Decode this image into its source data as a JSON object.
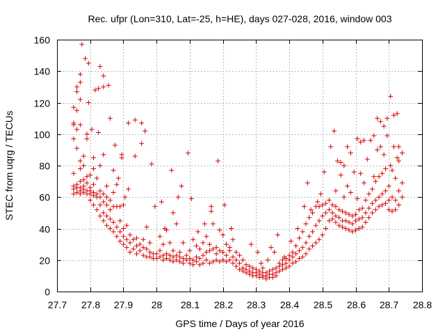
{
  "chart_data": {
    "type": "scatter",
    "title": "Rec. ufpr (Lon=310, Lat=-25, h=HE), days 027-028, 2016, window 003",
    "xlabel": "GPS time / Days of year 2016",
    "ylabel": "STEC from uqrg / TECUs",
    "xlim": [
      27.7,
      28.8
    ],
    "ylim": [
      0,
      160
    ],
    "x_ticks": [
      "27.7",
      "27.8",
      "27.9",
      "28",
      "28.1",
      "28.2",
      "28.3",
      "28.4",
      "28.5",
      "28.6",
      "28.7",
      "28.8"
    ],
    "y_ticks": [
      "0",
      "20",
      "40",
      "60",
      "80",
      "100",
      "120",
      "140",
      "160"
    ],
    "grid": true,
    "marker": "+",
    "color": "#d40000",
    "points": [
      [
        27.75,
        62
      ],
      [
        27.75,
        65
      ],
      [
        27.75,
        67
      ],
      [
        27.75,
        75
      ],
      [
        27.75,
        97
      ],
      [
        27.75,
        106
      ],
      [
        27.75,
        107
      ],
      [
        27.75,
        117
      ],
      [
        27.76,
        63
      ],
      [
        27.76,
        66
      ],
      [
        27.76,
        68
      ],
      [
        27.76,
        91
      ],
      [
        27.76,
        103
      ],
      [
        27.76,
        115
      ],
      [
        27.76,
        127
      ],
      [
        27.76,
        130
      ],
      [
        27.77,
        62
      ],
      [
        27.77,
        64
      ],
      [
        27.77,
        66
      ],
      [
        27.77,
        70
      ],
      [
        27.77,
        78
      ],
      [
        27.77,
        83
      ],
      [
        27.77,
        106
      ],
      [
        27.77,
        122
      ],
      [
        27.77,
        133
      ],
      [
        27.77,
        138
      ],
      [
        27.775,
        157
      ],
      [
        27.78,
        63
      ],
      [
        27.78,
        65
      ],
      [
        27.78,
        67
      ],
      [
        27.78,
        71
      ],
      [
        27.78,
        80
      ],
      [
        27.78,
        86
      ],
      [
        27.785,
        148
      ],
      [
        27.79,
        62
      ],
      [
        27.79,
        64
      ],
      [
        27.79,
        69
      ],
      [
        27.79,
        73
      ],
      [
        27.79,
        97
      ],
      [
        27.79,
        100
      ],
      [
        27.795,
        120
      ],
      [
        27.795,
        145
      ],
      [
        27.8,
        58
      ],
      [
        27.8,
        62
      ],
      [
        27.8,
        64
      ],
      [
        27.8,
        66
      ],
      [
        27.8,
        74
      ],
      [
        27.805,
        103
      ],
      [
        27.81,
        55
      ],
      [
        27.81,
        61
      ],
      [
        27.81,
        63
      ],
      [
        27.81,
        68
      ],
      [
        27.81,
        78
      ],
      [
        27.81,
        85
      ],
      [
        27.815,
        128
      ],
      [
        27.82,
        52
      ],
      [
        27.82,
        60
      ],
      [
        27.82,
        62
      ],
      [
        27.82,
        72
      ],
      [
        27.825,
        101
      ],
      [
        27.825,
        129
      ],
      [
        27.83,
        48
      ],
      [
        27.83,
        55
      ],
      [
        27.83,
        60
      ],
      [
        27.83,
        64
      ],
      [
        27.83,
        80
      ],
      [
        27.83,
        143
      ],
      [
        27.84,
        45
      ],
      [
        27.84,
        50
      ],
      [
        27.84,
        57
      ],
      [
        27.84,
        62
      ],
      [
        27.84,
        87
      ],
      [
        27.84,
        130
      ],
      [
        27.84,
        137
      ],
      [
        27.85,
        42
      ],
      [
        27.85,
        48
      ],
      [
        27.85,
        55
      ],
      [
        27.85,
        60
      ],
      [
        27.85,
        67
      ],
      [
        27.855,
        131
      ],
      [
        27.86,
        40
      ],
      [
        27.86,
        46
      ],
      [
        27.86,
        52
      ],
      [
        27.86,
        58
      ],
      [
        27.86,
        110
      ],
      [
        27.87,
        38
      ],
      [
        27.87,
        44
      ],
      [
        27.87,
        54
      ],
      [
        27.87,
        63
      ],
      [
        27.87,
        77
      ],
      [
        27.875,
        93
      ],
      [
        27.88,
        35
      ],
      [
        27.88,
        41
      ],
      [
        27.88,
        54
      ],
      [
        27.88,
        68
      ],
      [
        27.885,
        72
      ],
      [
        27.89,
        32
      ],
      [
        27.89,
        38
      ],
      [
        27.89,
        45
      ],
      [
        27.89,
        54
      ],
      [
        27.895,
        85
      ],
      [
        27.895,
        87
      ],
      [
        27.9,
        30
      ],
      [
        27.9,
        35
      ],
      [
        27.9,
        40
      ],
      [
        27.9,
        55
      ],
      [
        27.905,
        60
      ],
      [
        27.91,
        28
      ],
      [
        27.91,
        33
      ],
      [
        27.91,
        42
      ],
      [
        27.915,
        65
      ],
      [
        27.915,
        107
      ],
      [
        27.92,
        25
      ],
      [
        27.92,
        31
      ],
      [
        27.92,
        36
      ],
      [
        27.93,
        27
      ],
      [
        27.93,
        33
      ],
      [
        27.935,
        86
      ],
      [
        27.935,
        109
      ],
      [
        27.94,
        24
      ],
      [
        27.94,
        29
      ],
      [
        27.94,
        34
      ],
      [
        27.95,
        26
      ],
      [
        27.95,
        30
      ],
      [
        27.955,
        94
      ],
      [
        27.955,
        107
      ],
      [
        27.96,
        23
      ],
      [
        27.96,
        28
      ],
      [
        27.96,
        33
      ],
      [
        27.965,
        102
      ],
      [
        27.97,
        22
      ],
      [
        27.97,
        27
      ],
      [
        27.97,
        41
      ],
      [
        27.98,
        22
      ],
      [
        27.98,
        25
      ],
      [
        27.98,
        31
      ],
      [
        27.985,
        81
      ],
      [
        27.99,
        21
      ],
      [
        27.99,
        24
      ],
      [
        27.995,
        54
      ],
      [
        28.0,
        21
      ],
      [
        28.0,
        24
      ],
      [
        28.01,
        22
      ],
      [
        28.01,
        26
      ],
      [
        28.01,
        35
      ],
      [
        28.015,
        57
      ],
      [
        28.02,
        20
      ],
      [
        28.02,
        23
      ],
      [
        28.02,
        30
      ],
      [
        28.025,
        40
      ],
      [
        28.03,
        21
      ],
      [
        28.03,
        24
      ],
      [
        28.03,
        39
      ],
      [
        28.04,
        20
      ],
      [
        28.04,
        23
      ],
      [
        28.04,
        31
      ],
      [
        28.045,
        77
      ],
      [
        28.05,
        19
      ],
      [
        28.05,
        22
      ],
      [
        28.05,
        26
      ],
      [
        28.05,
        50
      ],
      [
        28.06,
        20
      ],
      [
        28.06,
        23
      ],
      [
        28.06,
        43
      ],
      [
        28.065,
        60
      ],
      [
        28.07,
        19
      ],
      [
        28.07,
        22
      ],
      [
        28.07,
        25
      ],
      [
        28.075,
        67
      ],
      [
        28.08,
        18
      ],
      [
        28.08,
        21
      ],
      [
        28.08,
        31
      ],
      [
        28.09,
        20
      ],
      [
        28.09,
        23
      ],
      [
        28.095,
        88
      ],
      [
        28.1,
        18
      ],
      [
        28.1,
        21
      ],
      [
        28.1,
        26
      ],
      [
        28.105,
        59
      ],
      [
        28.11,
        17
      ],
      [
        28.11,
        20
      ],
      [
        28.11,
        33
      ],
      [
        28.12,
        19
      ],
      [
        28.12,
        22
      ],
      [
        28.12,
        29
      ],
      [
        28.125,
        38
      ],
      [
        28.13,
        17
      ],
      [
        28.13,
        21
      ],
      [
        28.13,
        27
      ],
      [
        28.14,
        18
      ],
      [
        28.14,
        23
      ],
      [
        28.14,
        31
      ],
      [
        28.145,
        43
      ],
      [
        28.15,
        20
      ],
      [
        28.15,
        25
      ],
      [
        28.15,
        35
      ],
      [
        28.16,
        18
      ],
      [
        28.16,
        26
      ],
      [
        28.16,
        30
      ],
      [
        28.165,
        51
      ],
      [
        28.165,
        54
      ],
      [
        28.17,
        19
      ],
      [
        28.17,
        27
      ],
      [
        28.17,
        43
      ],
      [
        28.18,
        20
      ],
      [
        28.18,
        24
      ],
      [
        28.18,
        28
      ],
      [
        28.185,
        83
      ],
      [
        28.19,
        19
      ],
      [
        28.19,
        26
      ],
      [
        28.19,
        39
      ],
      [
        28.2,
        20
      ],
      [
        28.2,
        25
      ],
      [
        28.2,
        36
      ],
      [
        28.205,
        55
      ],
      [
        28.21,
        19
      ],
      [
        28.21,
        23
      ],
      [
        28.21,
        30
      ],
      [
        28.22,
        20
      ],
      [
        28.22,
        26
      ],
      [
        28.22,
        28
      ],
      [
        28.225,
        40
      ],
      [
        28.23,
        18
      ],
      [
        28.23,
        22
      ],
      [
        28.23,
        33
      ],
      [
        28.24,
        16
      ],
      [
        28.24,
        20
      ],
      [
        28.24,
        25
      ],
      [
        28.25,
        14
      ],
      [
        28.25,
        18
      ],
      [
        28.25,
        23
      ],
      [
        28.26,
        13
      ],
      [
        28.26,
        15
      ],
      [
        28.26,
        20
      ],
      [
        28.27,
        12
      ],
      [
        28.27,
        14
      ],
      [
        28.27,
        17
      ],
      [
        28.28,
        11
      ],
      [
        28.28,
        13
      ],
      [
        28.28,
        16
      ],
      [
        28.285,
        30
      ],
      [
        28.29,
        10
      ],
      [
        28.29,
        12
      ],
      [
        28.29,
        15
      ],
      [
        28.3,
        10
      ],
      [
        28.3,
        12
      ],
      [
        28.3,
        14
      ],
      [
        28.305,
        25
      ],
      [
        28.31,
        9
      ],
      [
        28.31,
        11
      ],
      [
        28.31,
        13
      ],
      [
        28.315,
        18
      ],
      [
        28.32,
        9
      ],
      [
        28.32,
        10
      ],
      [
        28.32,
        12
      ],
      [
        28.32,
        15
      ],
      [
        28.33,
        8
      ],
      [
        28.33,
        10
      ],
      [
        28.33,
        12
      ],
      [
        28.335,
        20
      ],
      [
        28.34,
        9
      ],
      [
        28.34,
        11
      ],
      [
        28.34,
        13
      ],
      [
        28.345,
        28
      ],
      [
        28.35,
        9
      ],
      [
        28.35,
        11
      ],
      [
        28.35,
        14
      ],
      [
        28.355,
        25
      ],
      [
        28.36,
        10
      ],
      [
        28.36,
        12
      ],
      [
        28.36,
        15
      ],
      [
        28.365,
        36
      ],
      [
        28.37,
        13
      ],
      [
        28.37,
        16
      ],
      [
        28.37,
        18
      ],
      [
        28.38,
        14
      ],
      [
        28.38,
        17
      ],
      [
        28.38,
        20
      ],
      [
        28.385,
        22
      ],
      [
        28.39,
        15
      ],
      [
        28.39,
        18
      ],
      [
        28.39,
        21
      ],
      [
        28.4,
        16
      ],
      [
        28.4,
        20
      ],
      [
        28.4,
        23
      ],
      [
        28.405,
        32
      ],
      [
        28.41,
        18
      ],
      [
        28.41,
        22
      ],
      [
        28.41,
        25
      ],
      [
        28.42,
        19
      ],
      [
        28.42,
        24
      ],
      [
        28.42,
        29
      ],
      [
        28.425,
        40
      ],
      [
        28.43,
        21
      ],
      [
        28.43,
        26
      ],
      [
        28.43,
        34
      ],
      [
        28.44,
        22
      ],
      [
        28.44,
        28
      ],
      [
        28.44,
        38
      ],
      [
        28.445,
        54
      ],
      [
        28.45,
        24
      ],
      [
        28.45,
        31
      ],
      [
        28.45,
        43
      ],
      [
        28.455,
        69
      ],
      [
        28.46,
        27
      ],
      [
        28.46,
        35
      ],
      [
        28.46,
        47
      ],
      [
        28.465,
        52
      ],
      [
        28.47,
        29
      ],
      [
        28.47,
        38
      ],
      [
        28.47,
        50
      ],
      [
        28.48,
        31
      ],
      [
        28.48,
        42
      ],
      [
        28.48,
        54
      ],
      [
        28.485,
        57
      ],
      [
        28.49,
        33
      ],
      [
        28.49,
        45
      ],
      [
        28.49,
        54
      ],
      [
        28.495,
        62
      ],
      [
        28.5,
        36
      ],
      [
        28.5,
        48
      ],
      [
        28.5,
        55
      ],
      [
        28.505,
        76
      ],
      [
        28.51,
        40
      ],
      [
        28.51,
        50
      ],
      [
        28.51,
        56
      ],
      [
        28.52,
        45
      ],
      [
        28.52,
        52
      ],
      [
        28.52,
        58
      ],
      [
        28.525,
        92
      ],
      [
        28.53,
        46
      ],
      [
        28.53,
        50
      ],
      [
        28.53,
        55
      ],
      [
        28.535,
        102
      ],
      [
        28.54,
        44
      ],
      [
        28.54,
        48
      ],
      [
        28.54,
        54
      ],
      [
        28.54,
        64
      ],
      [
        28.545,
        83
      ],
      [
        28.55,
        42
      ],
      [
        28.55,
        47
      ],
      [
        28.55,
        52
      ],
      [
        28.555,
        74
      ],
      [
        28.555,
        82
      ],
      [
        28.56,
        41
      ],
      [
        28.56,
        45
      ],
      [
        28.56,
        51
      ],
      [
        28.565,
        60
      ],
      [
        28.565,
        80
      ],
      [
        28.57,
        40
      ],
      [
        28.57,
        45
      ],
      [
        28.57,
        50
      ],
      [
        28.575,
        67
      ],
      [
        28.575,
        92
      ],
      [
        28.58,
        39
      ],
      [
        28.58,
        44
      ],
      [
        28.58,
        49
      ],
      [
        28.585,
        63
      ],
      [
        28.585,
        88
      ],
      [
        28.59,
        38
      ],
      [
        28.59,
        43
      ],
      [
        28.59,
        48
      ],
      [
        28.595,
        76
      ],
      [
        28.6,
        39
      ],
      [
        28.6,
        45
      ],
      [
        28.6,
        49
      ],
      [
        28.605,
        59
      ],
      [
        28.605,
        97
      ],
      [
        28.61,
        40
      ],
      [
        28.61,
        46
      ],
      [
        28.61,
        52
      ],
      [
        28.615,
        75
      ],
      [
        28.615,
        95
      ],
      [
        28.62,
        41
      ],
      [
        28.62,
        47
      ],
      [
        28.62,
        53
      ],
      [
        28.625,
        69
      ],
      [
        28.625,
        96
      ],
      [
        28.63,
        44
      ],
      [
        28.63,
        50
      ],
      [
        28.63,
        58
      ],
      [
        28.635,
        84
      ],
      [
        28.64,
        47
      ],
      [
        28.64,
        53
      ],
      [
        28.64,
        62
      ],
      [
        28.645,
        96
      ],
      [
        28.65,
        50
      ],
      [
        28.65,
        56
      ],
      [
        28.65,
        65
      ],
      [
        28.655,
        73
      ],
      [
        28.655,
        99
      ],
      [
        28.66,
        52
      ],
      [
        28.66,
        58
      ],
      [
        28.66,
        70
      ],
      [
        28.665,
        90
      ],
      [
        28.665,
        110
      ],
      [
        28.67,
        54
      ],
      [
        28.67,
        60
      ],
      [
        28.67,
        73
      ],
      [
        28.675,
        92
      ],
      [
        28.675,
        108
      ],
      [
        28.68,
        55
      ],
      [
        28.68,
        62
      ],
      [
        28.68,
        75
      ],
      [
        28.685,
        87
      ],
      [
        28.685,
        105
      ],
      [
        28.69,
        56
      ],
      [
        28.69,
        64
      ],
      [
        28.69,
        78
      ],
      [
        28.695,
        99
      ],
      [
        28.695,
        110
      ],
      [
        28.7,
        52
      ],
      [
        28.7,
        58
      ],
      [
        28.7,
        67
      ],
      [
        28.705,
        80
      ],
      [
        28.705,
        124
      ],
      [
        28.71,
        51
      ],
      [
        28.71,
        60
      ],
      [
        28.71,
        77
      ],
      [
        28.715,
        92
      ],
      [
        28.715,
        112
      ],
      [
        28.72,
        52
      ],
      [
        28.72,
        58
      ],
      [
        28.72,
        72
      ],
      [
        28.725,
        85
      ],
      [
        28.725,
        113
      ],
      [
        28.73,
        55
      ],
      [
        28.73,
        64
      ],
      [
        28.73,
        83
      ],
      [
        28.73,
        92
      ],
      [
        28.74,
        60
      ],
      [
        28.74,
        69
      ],
      [
        28.74,
        88
      ]
    ]
  }
}
